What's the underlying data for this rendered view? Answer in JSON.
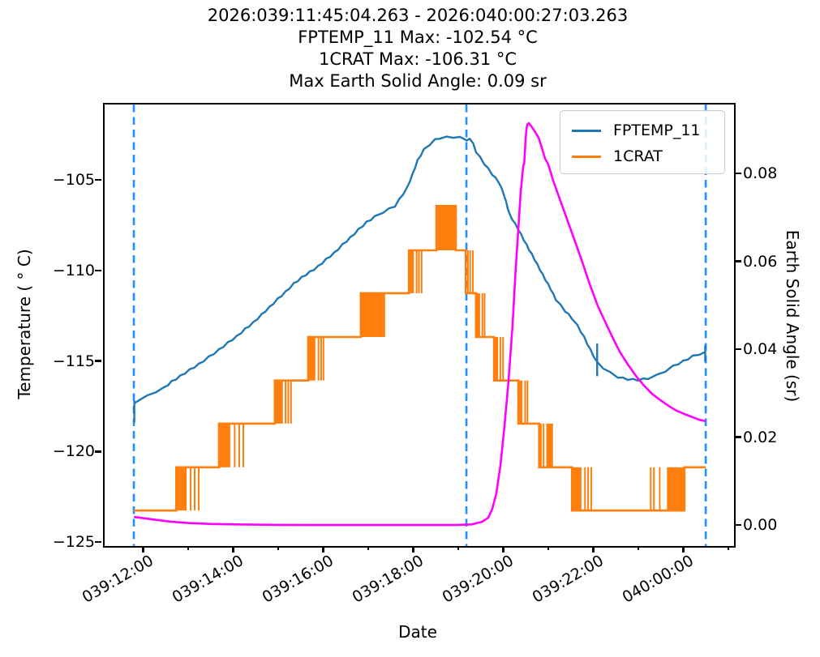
{
  "title": {
    "lines": [
      "2026:039:11:45:04.263 - 2026:040:00:27:03.263",
      "FPTEMP_11 Max: -102.54 °C",
      "1CRAT Max: -106.31 °C",
      "Max Earth Solid Angle: 0.09 sr"
    ]
  },
  "legend": {
    "entries": [
      {
        "label": "FPTEMP_11",
        "color": "#1f77b4"
      },
      {
        "label": "1CRAT",
        "color": "#ff7f0e"
      }
    ]
  },
  "colors": {
    "fptemp": "#1f77b4",
    "crat": "#ff7f0e",
    "solid_angle": "#ff00ff",
    "event_vline": "#1e90ff",
    "spine": "#000000"
  },
  "axes": {
    "x": {
      "label": "Date",
      "major_ticks": [
        {
          "value": 12,
          "label": "039:12:00"
        },
        {
          "value": 14,
          "label": "039:14:00"
        },
        {
          "value": 16,
          "label": "039:16:00"
        },
        {
          "value": 18,
          "label": "039:18:00"
        },
        {
          "value": 20,
          "label": "039:20:00"
        },
        {
          "value": 22,
          "label": "039:22:00"
        },
        {
          "value": 24,
          "label": "040:00:00"
        }
      ],
      "minor_ticks": [
        13,
        15,
        17,
        19,
        21,
        23,
        25
      ]
    },
    "y_left": {
      "label": "Temperature ( ° C)",
      "ticks": [
        {
          "value": -105,
          "label": "−105"
        },
        {
          "value": -110,
          "label": "−110"
        },
        {
          "value": -115,
          "label": "−115"
        },
        {
          "value": -120,
          "label": "−120"
        },
        {
          "value": -125,
          "label": "−125"
        }
      ]
    },
    "y_right": {
      "label": "Earth Solid Angle (sr)",
      "ticks": [
        {
          "value": 0.08,
          "label": "0.08"
        },
        {
          "value": 0.06,
          "label": "0.06"
        },
        {
          "value": 0.04,
          "label": "0.04"
        },
        {
          "value": 0.02,
          "label": "0.02"
        },
        {
          "value": 0.0,
          "label": "0.00"
        }
      ]
    }
  },
  "chart_data": {
    "type": "line",
    "time_axis_note": "x values are hours of day 039 (24 = 040:00:00)",
    "xlim": [
      11.11,
      25.09
    ],
    "temp_lim": [
      -125.13,
      -100.75
    ],
    "sr_lim": [
      -0.00442,
      0.09604
    ],
    "fptemp_max_c": -102.54,
    "crat_max_c": -106.31,
    "max_earth_solid_angle_sr": 0.09,
    "event_vlines": [
      11.759,
      19.146,
      24.462
    ],
    "fptemp_points": [
      [
        11.76,
        -117.3
      ],
      [
        11.9,
        -117.0
      ],
      [
        12.06,
        -116.85
      ],
      [
        12.25,
        -116.6
      ],
      [
        12.43,
        -116.4
      ],
      [
        12.6,
        -116.05
      ],
      [
        12.79,
        -115.75
      ],
      [
        13.0,
        -115.4
      ],
      [
        13.2,
        -115.1
      ],
      [
        13.42,
        -114.7
      ],
      [
        13.65,
        -114.3
      ],
      [
        13.85,
        -113.9
      ],
      [
        14.05,
        -113.55
      ],
      [
        14.23,
        -113.15
      ],
      [
        14.41,
        -112.8
      ],
      [
        14.6,
        -112.35
      ],
      [
        14.77,
        -111.95
      ],
      [
        14.95,
        -111.5
      ],
      [
        15.13,
        -111.1
      ],
      [
        15.31,
        -110.65
      ],
      [
        15.49,
        -110.3
      ],
      [
        15.67,
        -110.0
      ],
      [
        15.85,
        -109.7
      ],
      [
        16.03,
        -109.3
      ],
      [
        16.21,
        -108.95
      ],
      [
        16.39,
        -108.5
      ],
      [
        16.57,
        -108.1
      ],
      [
        16.75,
        -107.65
      ],
      [
        16.93,
        -107.25
      ],
      [
        17.11,
        -106.95
      ],
      [
        17.29,
        -106.7
      ],
      [
        17.56,
        -106.35
      ],
      [
        17.83,
        -105.35
      ],
      [
        17.95,
        -104.6
      ],
      [
        18.06,
        -103.85
      ],
      [
        18.2,
        -103.25
      ],
      [
        18.33,
        -102.95
      ],
      [
        18.45,
        -102.7
      ],
      [
        18.55,
        -102.6
      ],
      [
        18.7,
        -102.56
      ],
      [
        18.85,
        -102.55
      ],
      [
        19.0,
        -102.58
      ],
      [
        19.1,
        -102.62
      ],
      [
        19.15,
        -102.78
      ],
      [
        19.22,
        -102.6
      ],
      [
        19.3,
        -102.95
      ],
      [
        19.36,
        -103.35
      ],
      [
        19.54,
        -104.0
      ],
      [
        19.72,
        -104.6
      ],
      [
        19.87,
        -105.05
      ],
      [
        19.99,
        -105.8
      ],
      [
        20.1,
        -106.8
      ],
      [
        20.3,
        -107.65
      ],
      [
        20.48,
        -108.5
      ],
      [
        20.66,
        -109.3
      ],
      [
        20.84,
        -110.15
      ],
      [
        21.02,
        -110.95
      ],
      [
        21.13,
        -111.5
      ],
      [
        21.34,
        -112.15
      ],
      [
        21.49,
        -112.55
      ],
      [
        21.61,
        -112.95
      ],
      [
        21.76,
        -113.6
      ],
      [
        21.9,
        -114.3
      ],
      [
        22.05,
        -115.0
      ],
      [
        22.19,
        -115.3
      ],
      [
        22.33,
        -115.55
      ],
      [
        22.51,
        -115.8
      ],
      [
        22.73,
        -115.92
      ],
      [
        22.96,
        -115.96
      ],
      [
        23.18,
        -115.87
      ],
      [
        23.38,
        -115.7
      ],
      [
        23.56,
        -115.47
      ],
      [
        23.74,
        -115.2
      ],
      [
        23.96,
        -114.93
      ],
      [
        24.17,
        -114.66
      ],
      [
        24.32,
        -114.53
      ],
      [
        24.46,
        -114.4
      ]
    ],
    "fptemp_marks": [
      [
        11.77,
        -117.1,
        -118.3
      ],
      [
        22.05,
        -113.95,
        -115.75
      ],
      [
        24.45,
        -114.05,
        -114.95
      ]
    ],
    "crat_steps": [
      [
        11.76,
        -123.17
      ],
      [
        12.7,
        -123.17
      ],
      [
        12.7,
        -120.78
      ],
      [
        13.65,
        -120.78
      ],
      [
        13.65,
        -118.37
      ],
      [
        14.89,
        -118.37
      ],
      [
        14.89,
        -115.99
      ],
      [
        15.63,
        -115.99
      ],
      [
        15.63,
        -113.59
      ],
      [
        16.8,
        -113.59
      ],
      [
        16.8,
        -111.17
      ],
      [
        17.87,
        -111.17
      ],
      [
        17.87,
        -108.8
      ],
      [
        18.48,
        -108.8
      ],
      [
        18.48,
        -106.35
      ],
      [
        18.91,
        -106.35
      ],
      [
        18.91,
        -108.8
      ],
      [
        19.13,
        -108.8
      ],
      [
        19.13,
        -111.17
      ],
      [
        19.36,
        -111.17
      ],
      [
        19.36,
        -113.59
      ],
      [
        19.76,
        -113.59
      ],
      [
        19.76,
        -115.99
      ],
      [
        20.3,
        -115.99
      ],
      [
        20.3,
        -118.37
      ],
      [
        20.76,
        -118.37
      ],
      [
        20.76,
        -120.78
      ],
      [
        21.49,
        -120.78
      ],
      [
        21.49,
        -123.17
      ],
      [
        23.99,
        -123.17
      ],
      [
        23.99,
        -120.78
      ],
      [
        24.46,
        -120.78
      ]
    ],
    "crat_bands": [
      [
        12.7,
        12.93,
        -120.78,
        -123.17
      ],
      [
        13.65,
        13.9,
        -118.37,
        -120.78
      ],
      [
        14.89,
        15.07,
        -115.99,
        -118.37
      ],
      [
        15.63,
        15.79,
        -113.59,
        -115.99
      ],
      [
        16.8,
        17.34,
        -111.17,
        -113.59
      ],
      [
        17.87,
        17.98,
        -108.8,
        -111.17
      ],
      [
        18.48,
        18.91,
        -106.35,
        -108.8
      ],
      [
        19.36,
        19.45,
        -111.17,
        -113.59
      ],
      [
        19.76,
        19.85,
        -113.59,
        -115.99
      ],
      [
        20.3,
        20.39,
        -115.99,
        -118.37
      ],
      [
        20.92,
        21.07,
        -118.37,
        -120.78
      ],
      [
        21.49,
        21.7,
        -120.78,
        -123.17
      ],
      [
        23.6,
        23.99,
        -120.78,
        -123.17
      ]
    ],
    "crat_strands": [
      [
        13.02,
        -120.78,
        -123.17
      ],
      [
        13.11,
        -120.78,
        -123.17
      ],
      [
        13.2,
        -120.78,
        -123.17
      ],
      [
        14.0,
        -118.37,
        -120.78
      ],
      [
        14.1,
        -118.37,
        -120.78
      ],
      [
        14.19,
        -118.37,
        -120.78
      ],
      [
        15.13,
        -115.99,
        -118.37
      ],
      [
        15.19,
        -115.99,
        -118.37
      ],
      [
        15.25,
        -115.99,
        -118.37
      ],
      [
        15.86,
        -113.59,
        -115.99
      ],
      [
        15.92,
        -113.59,
        -115.99
      ],
      [
        15.97,
        -113.59,
        -115.99
      ],
      [
        18.04,
        -108.8,
        -111.17
      ],
      [
        18.09,
        -108.8,
        -111.17
      ],
      [
        18.15,
        -108.8,
        -111.17
      ],
      [
        19.18,
        -108.8,
        -111.17
      ],
      [
        19.23,
        -108.8,
        -111.17
      ],
      [
        19.29,
        -108.8,
        -111.17
      ],
      [
        19.5,
        -111.17,
        -113.59
      ],
      [
        19.55,
        -111.17,
        -113.59
      ],
      [
        19.9,
        -113.59,
        -115.99
      ],
      [
        19.96,
        -113.59,
        -115.99
      ],
      [
        20.45,
        -115.99,
        -118.37
      ],
      [
        20.5,
        -115.99,
        -118.37
      ],
      [
        20.8,
        -118.37,
        -120.78
      ],
      [
        20.86,
        -118.37,
        -120.78
      ],
      [
        21.78,
        -120.78,
        -123.17
      ],
      [
        21.85,
        -120.78,
        -123.17
      ],
      [
        21.92,
        -120.78,
        -123.17
      ],
      [
        23.24,
        -120.78,
        -123.17
      ],
      [
        23.31,
        -120.78,
        -123.17
      ],
      [
        23.44,
        -120.78,
        -123.17
      ]
    ],
    "solid_angle_points": [
      [
        11.76,
        0.0022
      ],
      [
        12.2,
        0.0016
      ],
      [
        12.6,
        0.0011
      ],
      [
        13.0,
        0.0008
      ],
      [
        13.5,
        0.0006
      ],
      [
        14.0,
        0.0005
      ],
      [
        15.0,
        0.0004
      ],
      [
        16.0,
        0.00035
      ],
      [
        17.0,
        0.00035
      ],
      [
        18.0,
        0.00035
      ],
      [
        18.9,
        0.00035
      ],
      [
        19.27,
        0.0005
      ],
      [
        19.49,
        0.0011
      ],
      [
        19.63,
        0.002
      ],
      [
        19.72,
        0.004
      ],
      [
        19.81,
        0.0075
      ],
      [
        19.9,
        0.0138
      ],
      [
        19.99,
        0.0227
      ],
      [
        20.08,
        0.033
      ],
      [
        20.17,
        0.0457
      ],
      [
        20.24,
        0.0586
      ],
      [
        20.3,
        0.0678
      ],
      [
        20.35,
        0.076
      ],
      [
        20.41,
        0.0822
      ],
      [
        20.43,
        0.0826
      ],
      [
        20.46,
        0.088
      ],
      [
        20.48,
        0.0905
      ],
      [
        20.5,
        0.0915
      ],
      [
        20.53,
        0.0918
      ],
      [
        20.58,
        0.0912
      ],
      [
        20.66,
        0.09
      ],
      [
        20.75,
        0.0885
      ],
      [
        20.82,
        0.0862
      ],
      [
        20.89,
        0.0838
      ],
      [
        20.96,
        0.0825
      ],
      [
        21.07,
        0.0788
      ],
      [
        21.21,
        0.0748
      ],
      [
        21.36,
        0.0705
      ],
      [
        21.52,
        0.066
      ],
      [
        21.7,
        0.0608
      ],
      [
        21.88,
        0.0553
      ],
      [
        22.06,
        0.0503
      ],
      [
        22.2,
        0.0472
      ],
      [
        22.37,
        0.0435
      ],
      [
        22.55,
        0.0398
      ],
      [
        22.73,
        0.0369
      ],
      [
        22.91,
        0.0343
      ],
      [
        23.09,
        0.0321
      ],
      [
        23.27,
        0.0302
      ],
      [
        23.45,
        0.0288
      ],
      [
        23.63,
        0.0275
      ],
      [
        23.81,
        0.0264
      ],
      [
        23.99,
        0.0256
      ],
      [
        24.17,
        0.0249
      ],
      [
        24.32,
        0.0243
      ],
      [
        24.46,
        0.024
      ]
    ]
  }
}
